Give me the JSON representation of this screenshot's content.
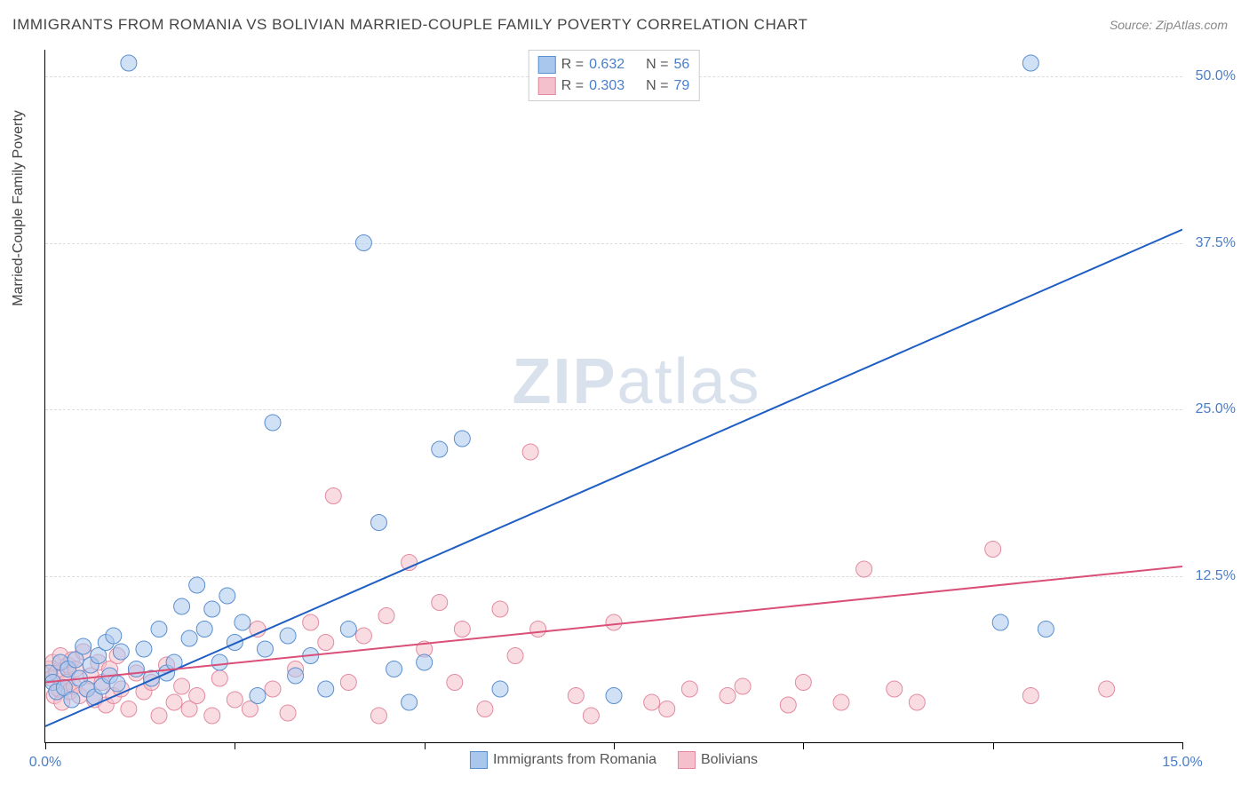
{
  "title": "IMMIGRANTS FROM ROMANIA VS BOLIVIAN MARRIED-COUPLE FAMILY POVERTY CORRELATION CHART",
  "source": "Source: ZipAtlas.com",
  "watermark": "ZIPatlas",
  "ylabel": "Married-Couple Family Poverty",
  "chart": {
    "type": "scatter",
    "xlim": [
      0,
      15
    ],
    "ylim": [
      0,
      52
    ],
    "ygrid": [
      12.5,
      25.0,
      37.5,
      50.0
    ],
    "ygrid_labels": [
      "12.5%",
      "25.0%",
      "37.5%",
      "50.0%"
    ],
    "xticks": [
      0,
      2.5,
      5.0,
      7.5,
      10.0,
      12.5,
      15.0
    ],
    "xtick_labels": {
      "0": "0.0%",
      "15": "15.0%"
    },
    "grid_color": "#dddddd",
    "background_color": "#ffffff",
    "axis_color": "#000000",
    "tick_label_color": "#4a7ec9",
    "marker_radius": 9,
    "marker_opacity": 0.55,
    "line_width": 2,
    "series": [
      {
        "name": "Immigrants from Romania",
        "color_fill": "#a9c6ec",
        "color_stroke": "#5a8fd0",
        "line_color": "#1f5fc4",
        "R": "0.632",
        "N": "56",
        "trend": {
          "x1": 0,
          "y1": 1.2,
          "x2": 15,
          "y2": 38.5
        },
        "points": [
          [
            0.05,
            5.2
          ],
          [
            0.1,
            4.5
          ],
          [
            0.15,
            3.8
          ],
          [
            0.2,
            6.0
          ],
          [
            0.25,
            4.1
          ],
          [
            0.3,
            5.5
          ],
          [
            0.35,
            3.2
          ],
          [
            0.4,
            6.2
          ],
          [
            0.45,
            4.8
          ],
          [
            0.5,
            7.2
          ],
          [
            0.55,
            4.0
          ],
          [
            0.6,
            5.8
          ],
          [
            0.65,
            3.4
          ],
          [
            0.7,
            6.5
          ],
          [
            0.75,
            4.2
          ],
          [
            0.8,
            7.5
          ],
          [
            0.85,
            5.0
          ],
          [
            0.9,
            8.0
          ],
          [
            0.95,
            4.4
          ],
          [
            1.0,
            6.8
          ],
          [
            1.1,
            51.0
          ],
          [
            1.2,
            5.5
          ],
          [
            1.3,
            7.0
          ],
          [
            1.4,
            4.8
          ],
          [
            1.5,
            8.5
          ],
          [
            1.6,
            5.2
          ],
          [
            1.7,
            6.0
          ],
          [
            1.8,
            10.2
          ],
          [
            1.9,
            7.8
          ],
          [
            2.0,
            11.8
          ],
          [
            2.1,
            8.5
          ],
          [
            2.2,
            10.0
          ],
          [
            2.3,
            6.0
          ],
          [
            2.4,
            11.0
          ],
          [
            2.5,
            7.5
          ],
          [
            2.6,
            9.0
          ],
          [
            2.8,
            3.5
          ],
          [
            2.9,
            7.0
          ],
          [
            3.0,
            24.0
          ],
          [
            3.2,
            8.0
          ],
          [
            3.3,
            5.0
          ],
          [
            3.5,
            6.5
          ],
          [
            3.7,
            4.0
          ],
          [
            4.0,
            8.5
          ],
          [
            4.2,
            37.5
          ],
          [
            4.4,
            16.5
          ],
          [
            4.6,
            5.5
          ],
          [
            4.8,
            3.0
          ],
          [
            5.0,
            6.0
          ],
          [
            5.2,
            22.0
          ],
          [
            5.5,
            22.8
          ],
          [
            6.0,
            4.0
          ],
          [
            7.5,
            3.5
          ],
          [
            12.6,
            9.0
          ],
          [
            13.0,
            51.0
          ],
          [
            13.2,
            8.5
          ]
        ]
      },
      {
        "name": "Bolivians",
        "color_fill": "#f4c0cb",
        "color_stroke": "#e38aa0",
        "line_color": "#d94f78",
        "R": "0.303",
        "N": "79",
        "trend": {
          "x1": 0,
          "y1": 4.5,
          "x2": 15,
          "y2": 13.2
        },
        "points": [
          [
            0.05,
            5.5
          ],
          [
            0.08,
            4.8
          ],
          [
            0.1,
            6.0
          ],
          [
            0.12,
            3.5
          ],
          [
            0.15,
            5.2
          ],
          [
            0.18,
            4.0
          ],
          [
            0.2,
            6.5
          ],
          [
            0.22,
            3.0
          ],
          [
            0.25,
            5.0
          ],
          [
            0.28,
            4.5
          ],
          [
            0.3,
            5.8
          ],
          [
            0.32,
            3.8
          ],
          [
            0.35,
            6.2
          ],
          [
            0.38,
            4.2
          ],
          [
            0.4,
            5.5
          ],
          [
            0.45,
            3.5
          ],
          [
            0.5,
            6.8
          ],
          [
            0.55,
            4.0
          ],
          [
            0.6,
            5.0
          ],
          [
            0.65,
            3.2
          ],
          [
            0.7,
            6.0
          ],
          [
            0.75,
            4.5
          ],
          [
            0.8,
            2.8
          ],
          [
            0.85,
            5.5
          ],
          [
            0.9,
            3.5
          ],
          [
            0.95,
            6.5
          ],
          [
            1.0,
            4.0
          ],
          [
            1.1,
            2.5
          ],
          [
            1.2,
            5.2
          ],
          [
            1.3,
            3.8
          ],
          [
            1.4,
            4.5
          ],
          [
            1.5,
            2.0
          ],
          [
            1.6,
            5.8
          ],
          [
            1.7,
            3.0
          ],
          [
            1.8,
            4.2
          ],
          [
            1.9,
            2.5
          ],
          [
            2.0,
            3.5
          ],
          [
            2.2,
            2.0
          ],
          [
            2.3,
            4.8
          ],
          [
            2.5,
            3.2
          ],
          [
            2.7,
            2.5
          ],
          [
            2.8,
            8.5
          ],
          [
            3.0,
            4.0
          ],
          [
            3.2,
            2.2
          ],
          [
            3.3,
            5.5
          ],
          [
            3.5,
            9.0
          ],
          [
            3.7,
            7.5
          ],
          [
            3.8,
            18.5
          ],
          [
            4.0,
            4.5
          ],
          [
            4.2,
            8.0
          ],
          [
            4.4,
            2.0
          ],
          [
            4.5,
            9.5
          ],
          [
            4.8,
            13.5
          ],
          [
            5.0,
            7.0
          ],
          [
            5.2,
            10.5
          ],
          [
            5.4,
            4.5
          ],
          [
            5.5,
            8.5
          ],
          [
            5.8,
            2.5
          ],
          [
            6.0,
            10.0
          ],
          [
            6.2,
            6.5
          ],
          [
            6.4,
            21.8
          ],
          [
            6.5,
            8.5
          ],
          [
            7.0,
            3.5
          ],
          [
            7.2,
            2.0
          ],
          [
            7.5,
            9.0
          ],
          [
            8.0,
            3.0
          ],
          [
            8.2,
            2.5
          ],
          [
            8.5,
            4.0
          ],
          [
            9.0,
            3.5
          ],
          [
            9.2,
            4.2
          ],
          [
            9.8,
            2.8
          ],
          [
            10.0,
            4.5
          ],
          [
            10.5,
            3.0
          ],
          [
            10.8,
            13.0
          ],
          [
            11.2,
            4.0
          ],
          [
            11.5,
            3.0
          ],
          [
            12.5,
            14.5
          ],
          [
            13.0,
            3.5
          ],
          [
            14.0,
            4.0
          ]
        ]
      }
    ]
  },
  "legend_labels": {
    "R": "R =",
    "N": "N ="
  }
}
